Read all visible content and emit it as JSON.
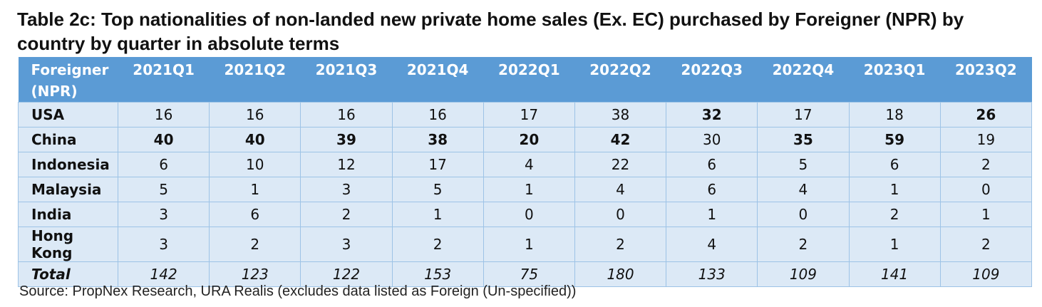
{
  "title": "Table 2c: Top nationalities of non-landed new private home sales (Ex. EC) purchased by Foreigner (NPR) by country by quarter in absolute terms",
  "table": {
    "corner_label": "Foreigner (NPR)",
    "quarters": [
      "2021Q1",
      "2021Q2",
      "2021Q3",
      "2021Q4",
      "2022Q1",
      "2022Q2",
      "2022Q3",
      "2022Q4",
      "2023Q1",
      "2023Q2"
    ],
    "rows": [
      {
        "country": "USA",
        "values": [
          "16",
          "16",
          "16",
          "16",
          "17",
          "38",
          "32",
          "17",
          "18",
          "26"
        ]
      },
      {
        "country": "China",
        "values": [
          "40",
          "40",
          "39",
          "38",
          "20",
          "42",
          "30",
          "35",
          "59",
          "19"
        ]
      },
      {
        "country": "Indonesia",
        "values": [
          "6",
          "10",
          "12",
          "17",
          "4",
          "22",
          "6",
          "5",
          "6",
          "2"
        ]
      },
      {
        "country": "Malaysia",
        "values": [
          "5",
          "1",
          "3",
          "5",
          "1",
          "4",
          "6",
          "4",
          "1",
          "0"
        ]
      },
      {
        "country": "India",
        "values": [
          "3",
          "6",
          "2",
          "1",
          "0",
          "0",
          "1",
          "0",
          "2",
          "1"
        ]
      },
      {
        "country": "Hong Kong",
        "values": [
          "3",
          "2",
          "3",
          "2",
          "1",
          "2",
          "4",
          "2",
          "1",
          "2"
        ]
      }
    ],
    "total": {
      "label": "Total",
      "values": [
        "142",
        "123",
        "122",
        "153",
        "75",
        "180",
        "133",
        "109",
        "141",
        "109"
      ]
    }
  },
  "source": "Source: PropNex Research, URA Realis (excludes data listed as Foreign (Un-specified))",
  "colors": {
    "header_bg": "#5b9bd5",
    "cell_bg": "#dce9f6",
    "grid": "#9dc3e6"
  }
}
